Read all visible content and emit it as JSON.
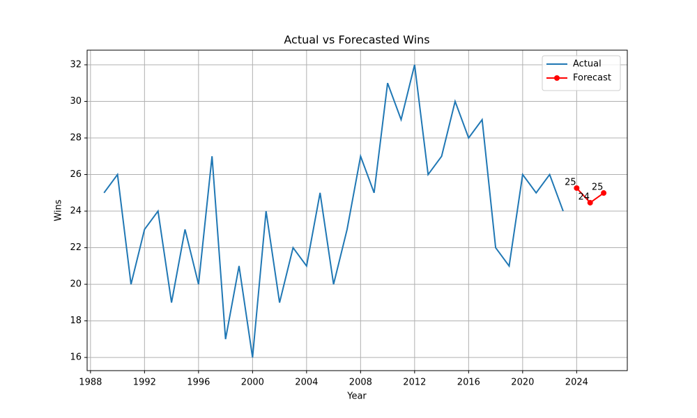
{
  "chart_data": {
    "type": "line",
    "title": "Actual vs Forecasted Wins",
    "x_label": "Year",
    "y_label": "Wins",
    "series": [
      {
        "name": "Actual",
        "color": "#1f77b4",
        "marker": false,
        "x": [
          1989,
          1990,
          1991,
          1992,
          1993,
          1994,
          1995,
          1996,
          1997,
          1998,
          1999,
          2000,
          2001,
          2002,
          2003,
          2004,
          2005,
          2006,
          2007,
          2008,
          2009,
          2010,
          2011,
          2012,
          2013,
          2014,
          2015,
          2016,
          2017,
          2018,
          2019,
          2020,
          2021,
          2022,
          2023
        ],
        "values": [
          25,
          26,
          20,
          23,
          24,
          19,
          23,
          20,
          27,
          17,
          21,
          16,
          24,
          19,
          22,
          21,
          25,
          20,
          23,
          27,
          25,
          31,
          29,
          32,
          26,
          27,
          30,
          28,
          29,
          22,
          21,
          26,
          25,
          26,
          24
        ]
      },
      {
        "name": "Forecast",
        "color": "#ff0000",
        "marker": true,
        "x": [
          2024,
          2025,
          2026
        ],
        "values": [
          25.26,
          24.46,
          24.99
        ],
        "value_labels": [
          "25",
          "24",
          "25"
        ]
      }
    ],
    "xlim": [
      1987.75,
      2027.75
    ],
    "xticks": [
      1988,
      1992,
      1996,
      2000,
      2004,
      2008,
      2012,
      2016,
      2020,
      2024
    ],
    "ylim": [
      15.28,
      32.8
    ],
    "yticks": [
      16,
      18,
      20,
      22,
      24,
      26,
      28,
      30,
      32
    ],
    "grid": true,
    "legend": "upper right"
  }
}
